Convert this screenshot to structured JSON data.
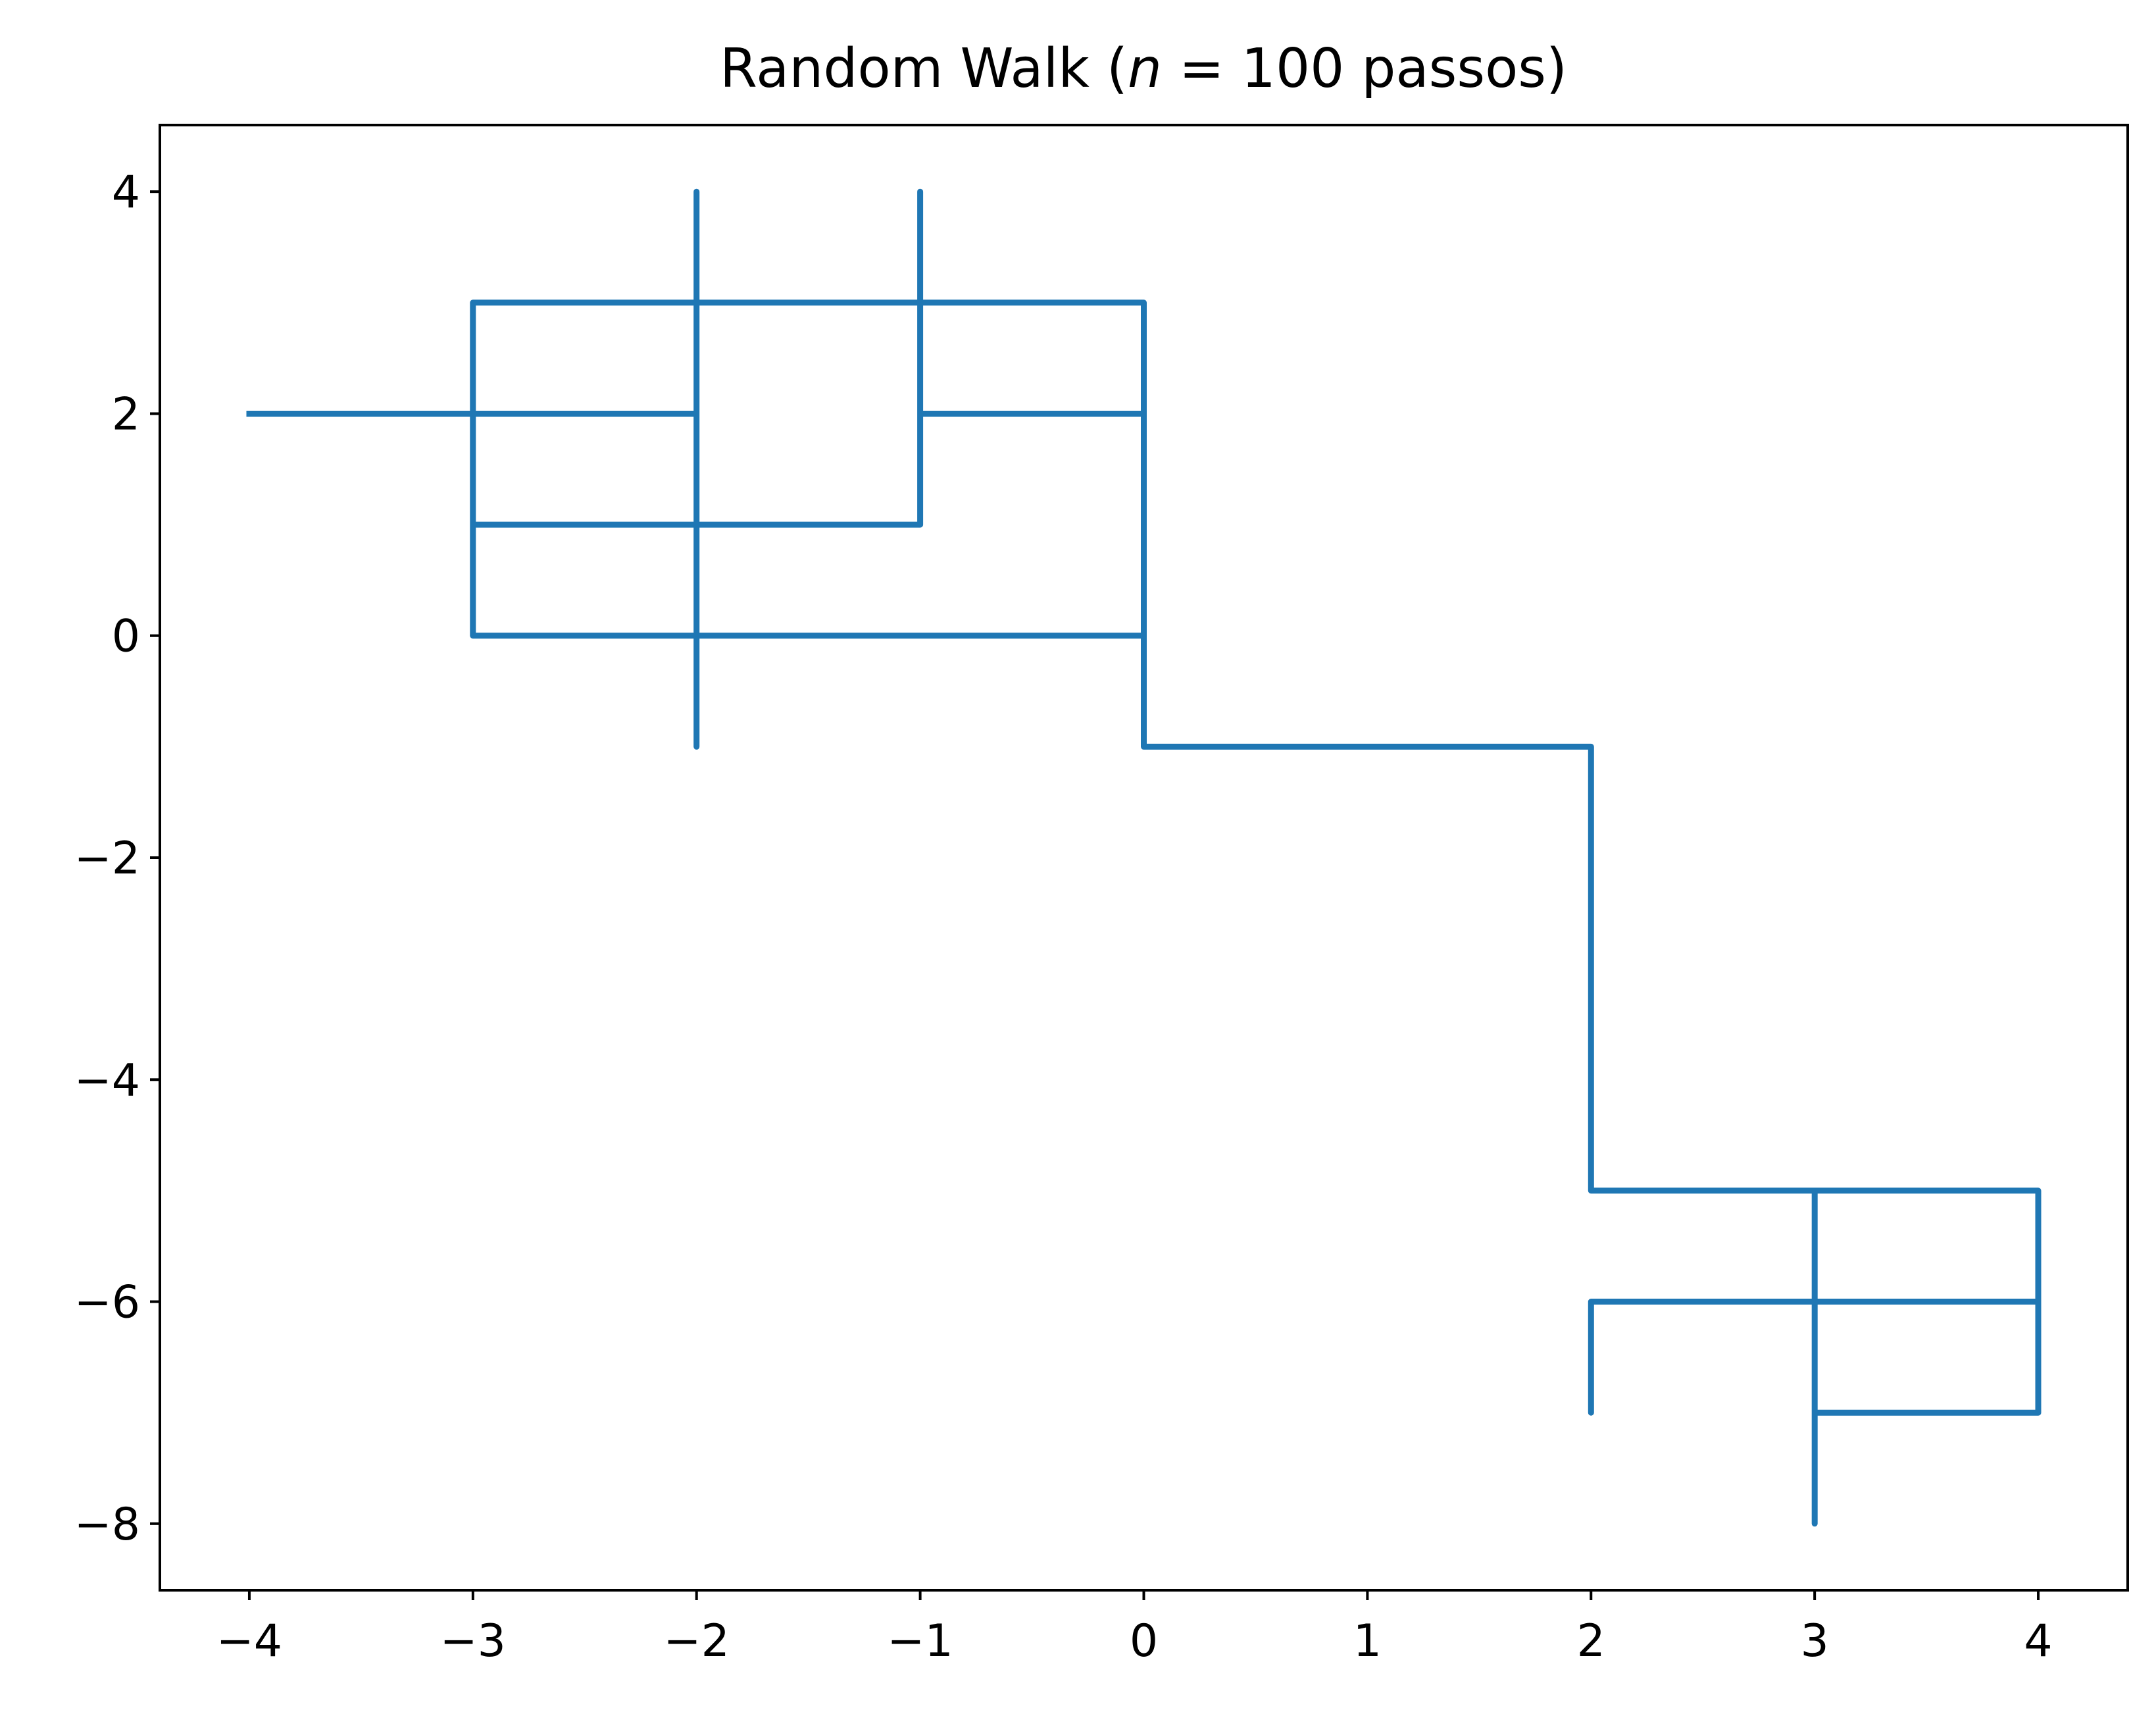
{
  "chart_data": {
    "type": "line",
    "title_prefix": "Random Walk (",
    "title_math": "n",
    "title_suffix": " = 100 passos)",
    "xlabel": "",
    "ylabel": "",
    "xlim": [
      -4.4,
      4.4
    ],
    "ylim": [
      -8.6,
      4.6
    ],
    "grid": false,
    "legend": "none",
    "line_color": "#1f77b4",
    "xticks": [
      -4,
      -3,
      -2,
      -1,
      0,
      1,
      2,
      3,
      4
    ],
    "xtick_labels": [
      "−4",
      "−3",
      "−2",
      "−1",
      "0",
      "1",
      "2",
      "3",
      "4"
    ],
    "yticks": [
      4,
      2,
      0,
      -2,
      -4,
      -6,
      -8
    ],
    "ytick_labels": [
      "4",
      "2",
      "0",
      "−2",
      "−4",
      "−6",
      "−8"
    ],
    "series": [
      {
        "points": [
          [
            -4,
            2
          ],
          [
            -2,
            2
          ],
          [
            -2,
            4
          ],
          [
            -2,
            1
          ],
          [
            -3,
            1
          ],
          [
            -3,
            3
          ],
          [
            0,
            3
          ],
          [
            0,
            -1
          ],
          [
            2,
            -1
          ],
          [
            2,
            -5
          ],
          [
            4,
            -5
          ],
          [
            4,
            -7
          ],
          [
            3,
            -7
          ],
          [
            3,
            -8
          ],
          [
            3,
            -5
          ],
          [
            3,
            -6
          ],
          [
            2,
            -6
          ],
          [
            2,
            -7
          ],
          [
            2,
            -6
          ],
          [
            4,
            -6
          ],
          [
            4,
            -5
          ],
          [
            2,
            -5
          ],
          [
            2,
            -1
          ],
          [
            0,
            -1
          ],
          [
            0,
            0
          ],
          [
            -3,
            0
          ],
          [
            -3,
            2
          ],
          [
            -2,
            2
          ],
          [
            -2,
            -1
          ],
          [
            -2,
            1
          ],
          [
            -1,
            1
          ],
          [
            -1,
            4
          ],
          [
            -1,
            2
          ],
          [
            0,
            2
          ],
          [
            0,
            0
          ]
        ]
      }
    ]
  }
}
